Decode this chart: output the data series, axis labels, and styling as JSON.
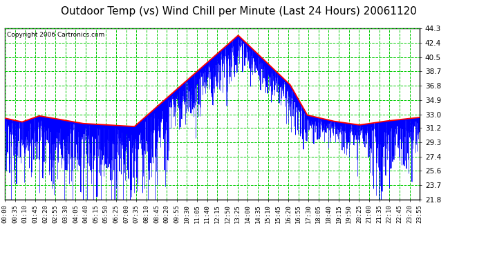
{
  "title": "Outdoor Temp (vs) Wind Chill per Minute (Last 24 Hours) 20061120",
  "copyright": "Copyright 2006 Cartronics.com",
  "yticks": [
    21.8,
    23.7,
    25.6,
    27.4,
    29.3,
    31.2,
    33.0,
    34.9,
    36.8,
    38.7,
    40.5,
    42.4,
    44.3
  ],
  "ymin": 21.8,
  "ymax": 44.3,
  "num_minutes": 1440,
  "bg_color": "#ffffff",
  "plot_bg_color": "#ffffff",
  "grid_color": "#00cc00",
  "blue_color": "#0000ff",
  "red_color": "#ff0000",
  "title_fontsize": 11,
  "copyright_fontsize": 6.5,
  "tick_fontsize": 7.5,
  "xtick_labels": [
    "00:00",
    "00:35",
    "01:10",
    "01:45",
    "02:20",
    "02:55",
    "03:30",
    "04:05",
    "04:40",
    "05:15",
    "05:50",
    "06:25",
    "07:00",
    "07:35",
    "08:10",
    "08:45",
    "09:20",
    "09:55",
    "10:30",
    "11:05",
    "11:40",
    "12:15",
    "12:50",
    "13:25",
    "14:00",
    "14:35",
    "15:10",
    "15:45",
    "16:20",
    "16:55",
    "17:30",
    "18:05",
    "18:40",
    "19:15",
    "19:50",
    "20:25",
    "21:00",
    "21:35",
    "22:10",
    "22:45",
    "23:20",
    "23:55"
  ]
}
